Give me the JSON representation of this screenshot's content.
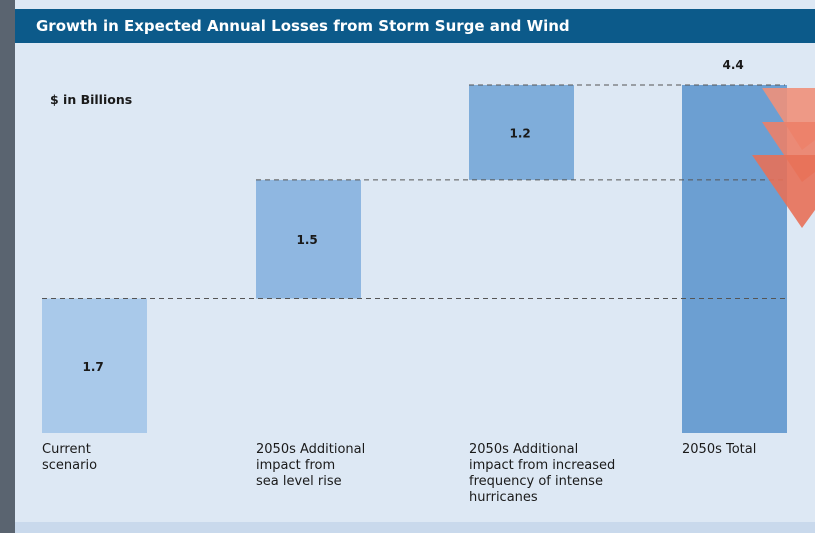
{
  "chart_data": {
    "type": "waterfall",
    "title": "Growth in Expected Annual Losses from Storm Surge and Wind",
    "unit_label": "$ in Billions",
    "categories": [
      [
        "Current",
        "scenario"
      ],
      [
        "2050s Additional",
        "impact from",
        "sea level rise"
      ],
      [
        "2050s Additional",
        "impact from increased",
        "frequency of intense",
        "hurricanes"
      ],
      [
        "2050s Total"
      ]
    ],
    "values": [
      1.7,
      1.5,
      1.2,
      4.4
    ],
    "colors": [
      "#a9c9ea",
      "#8fb7e1",
      "#7fadda",
      "#6c9fd2"
    ],
    "total_index": 3
  }
}
